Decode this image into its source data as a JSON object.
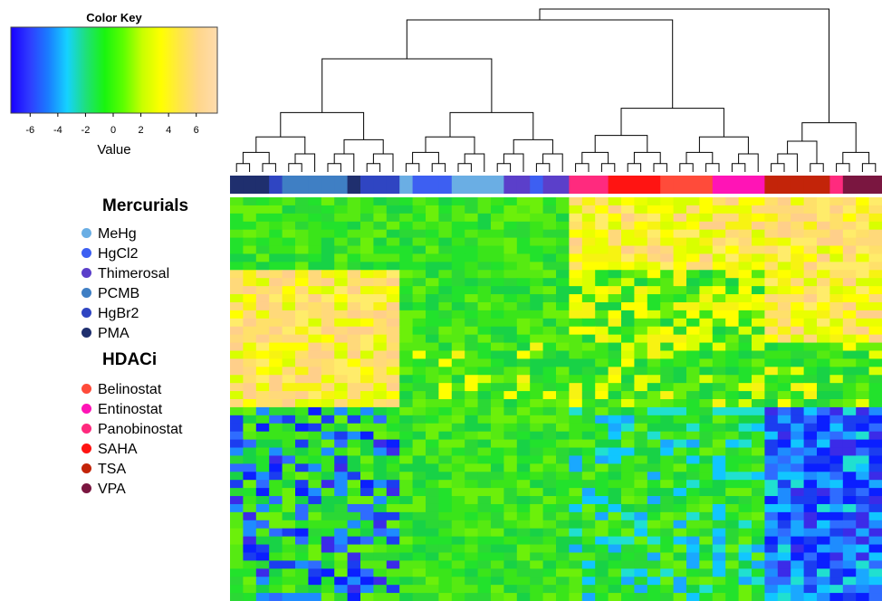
{
  "chart_data": {
    "type": "heatmap",
    "color_key": {
      "title": "Color Key",
      "xlabel": "Value",
      "range": [
        -7,
        7
      ],
      "ticks": [
        -6,
        -4,
        -2,
        0,
        2,
        4,
        6
      ],
      "gradient": [
        "#1800ff",
        "#2f3cff",
        "#1a7dff",
        "#15d2ff",
        "#1ee07a",
        "#19f50f",
        "#5dff00",
        "#c8ff00",
        "#ffff00",
        "#ffe64a",
        "#ffd68a",
        "#ffdcae"
      ]
    },
    "legend_groups": [
      {
        "title": "Mercurials",
        "items": [
          {
            "label": "MeHg",
            "color": "#6aaee4"
          },
          {
            "label": "HgCl2",
            "color": "#3d5ff2"
          },
          {
            "label": "Thimerosal",
            "color": "#5b3fca"
          },
          {
            "label": "PCMB",
            "color": "#3f7fc4"
          },
          {
            "label": "HgBr2",
            "color": "#2f45c2"
          },
          {
            "label": "PMA",
            "color": "#1f2f6e"
          }
        ]
      },
      {
        "title": "HDACi",
        "items": [
          {
            "label": "Belinostat",
            "color": "#ff4b3a"
          },
          {
            "label": "Entinostat",
            "color": "#ff14b6"
          },
          {
            "label": "Panobinostat",
            "color": "#ff2a7e"
          },
          {
            "label": "SAHA",
            "color": "#ff1412"
          },
          {
            "label": "TSA",
            "color": "#c32409"
          },
          {
            "label": "VPA",
            "color": "#7a1640"
          }
        ]
      }
    ],
    "column_groups": [
      "PMA",
      "PMA",
      "PMA",
      "HgBr2",
      "PCMB",
      "PCMB",
      "PCMB",
      "PCMB",
      "PCMB",
      "PMA",
      "HgBr2",
      "HgBr2",
      "HgBr2",
      "MeHg",
      "HgCl2",
      "HgCl2",
      "HgCl2",
      "MeHg",
      "MeHg",
      "MeHg",
      "MeHg",
      "Thimerosal",
      "Thimerosal",
      "HgCl2",
      "Thimerosal",
      "Thimerosal",
      "Panobinostat",
      "Panobinostat",
      "Panobinostat",
      "SAHA",
      "SAHA",
      "SAHA",
      "SAHA",
      "Belinostat",
      "Belinostat",
      "Belinostat",
      "Belinostat",
      "Entinostat",
      "Entinostat",
      "Entinostat",
      "Entinostat",
      "TSA",
      "TSA",
      "TSA",
      "TSA",
      "TSA",
      "Panobinostat",
      "VPA",
      "VPA",
      "VPA"
    ],
    "n_rows": 50,
    "row_blocks": [
      {
        "rows": [
          0,
          8
        ],
        "Mercurials_left": "green",
        "Mercurials": "green",
        "HDACi": "yellow/orange",
        "TSA": "orange",
        "VPA": "yellow"
      },
      {
        "rows": [
          9,
          17
        ],
        "Mercurials_left": "orange/yellow",
        "Mercurials": "green",
        "HDACi": "green/yellow",
        "TSA": "yellow",
        "VPA": "yellow"
      },
      {
        "rows": [
          18,
          25
        ],
        "Mercurials_left": "orange/yellow",
        "Mercurials": "green",
        "HDACi": "green",
        "TSA": "green",
        "VPA": "green"
      },
      {
        "rows": [
          26,
          35
        ],
        "Mercurials_left": "blue/green",
        "Mercurials": "green",
        "HDACi": "green/cyan",
        "TSA": "blue",
        "VPA": "blue"
      }
    ]
  }
}
